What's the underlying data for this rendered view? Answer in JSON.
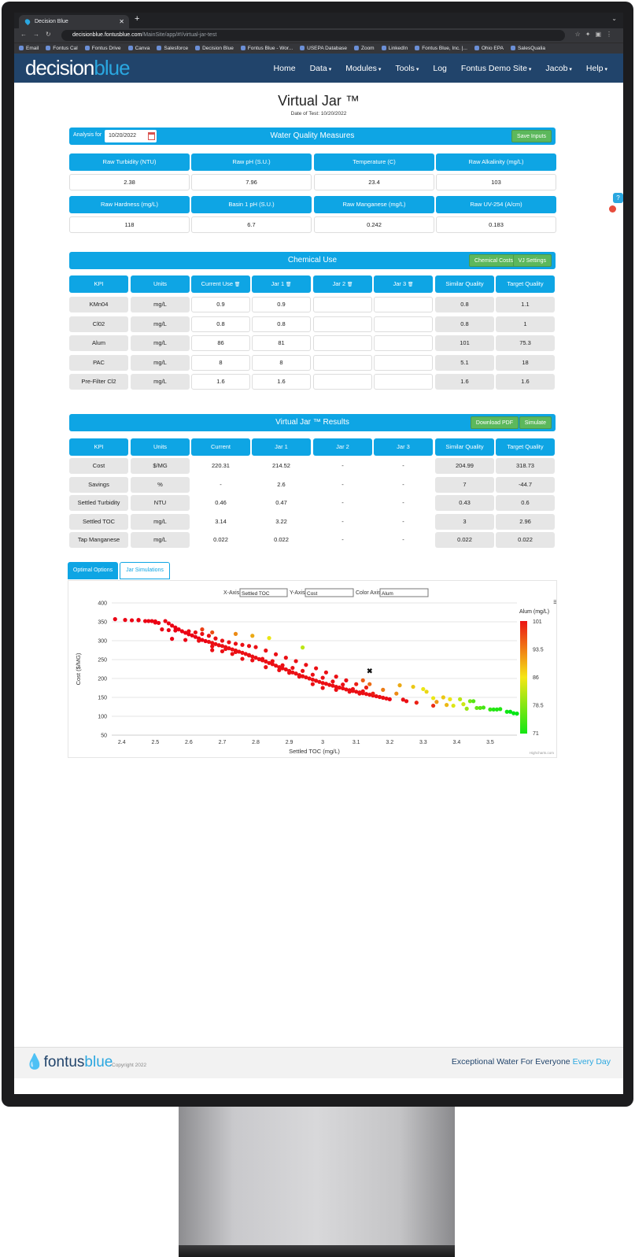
{
  "browser": {
    "tab_title": "Decision Blue",
    "url_host": "decisionblue.fontusblue.com",
    "url_path": "/MainSite/app/#!/virtual-jar-test",
    "bookmarks": [
      "Email",
      "Fontus Cal",
      "Fontus Drive",
      "Canva",
      "Salesforce",
      "Decision Blue",
      "Fontus Blue - Wor...",
      "USEPA Database",
      "Zoom",
      "LinkedIn",
      "Fontus Blue, Inc. |...",
      "Ohio EPA",
      "SalesQualia"
    ]
  },
  "nav": {
    "logo_a": "decision",
    "logo_b": "blue",
    "items": [
      "Home",
      "Data",
      "Modules",
      "Tools",
      "Log",
      "Fontus Demo Site",
      "Jacob",
      "Help"
    ]
  },
  "page": {
    "title": "Virtual Jar ™",
    "subtitle": "Date of Test: 10/20/2022"
  },
  "wq": {
    "analysis_label": "Analysis for",
    "date": "10/20/2022",
    "title": "Water Quality Measures",
    "save_label": "Save Inputs",
    "row1": [
      {
        "label": "Raw Turbidity (NTU)",
        "value": "2.38"
      },
      {
        "label": "Raw pH (S.U.)",
        "value": "7.96"
      },
      {
        "label": "Temperature (C)",
        "value": "23.4"
      },
      {
        "label": "Raw Alkalinity (mg/L)",
        "value": "103"
      }
    ],
    "row2": [
      {
        "label": "Raw Hardness (mg/L)",
        "value": "118"
      },
      {
        "label": "Basin 1 pH (S.U.)",
        "value": "6.7"
      },
      {
        "label": "Raw Manganese (mg/L)",
        "value": "0.242"
      },
      {
        "label": "Raw UV-254 (A/cm)",
        "value": "0.183"
      }
    ]
  },
  "chem": {
    "title": "Chemical Use",
    "costs_label": "Chemical Costs",
    "settings_label": "VJ Settings",
    "headers": [
      "KPI",
      "Units",
      "Current Use",
      "Jar 1",
      "Jar 2",
      "Jar 3",
      "Similar Quality",
      "Target Quality"
    ],
    "rows": [
      [
        "KMn04",
        "mg/L",
        "0.9",
        "0.9",
        "",
        "",
        "0.8",
        "1.1"
      ],
      [
        "Cl02",
        "mg/L",
        "0.8",
        "0.8",
        "",
        "",
        "0.8",
        "1"
      ],
      [
        "Alum",
        "mg/L",
        "86",
        "81",
        "",
        "",
        "101",
        "75.3"
      ],
      [
        "PAC",
        "mg/L",
        "8",
        "8",
        "",
        "",
        "5.1",
        "18"
      ],
      [
        "Pre-Filter Cl2",
        "mg/L",
        "1.6",
        "1.6",
        "",
        "",
        "1.6",
        "1.6"
      ]
    ]
  },
  "results": {
    "title": "Virtual Jar ™ Results",
    "pdf_label": "Download PDF",
    "simulate_label": "Simulate",
    "headers": [
      "KPI",
      "Units",
      "Current",
      "Jar 1",
      "Jar 2",
      "Jar 3",
      "Similar Quality",
      "Target Quality"
    ],
    "rows": [
      [
        "Cost",
        "$/MG",
        "220.31",
        "214.52",
        "-",
        "-",
        "204.99",
        "318.73"
      ],
      [
        "Savings",
        "%",
        "-",
        "2.6",
        "-",
        "-",
        "7",
        "-44.7"
      ],
      [
        "Settled Turbidity",
        "NTU",
        "0.46",
        "0.47",
        "-",
        "-",
        "0.43",
        "0.6"
      ],
      [
        "Settled TOC",
        "mg/L",
        "3.14",
        "3.22",
        "-",
        "-",
        "3",
        "2.96"
      ],
      [
        "Tap Manganese",
        "mg/L",
        "0.022",
        "0.022",
        "-",
        "-",
        "0.022",
        "0.022"
      ]
    ]
  },
  "tabs": {
    "optimal": "Optimal Options",
    "jar": "Jar Simulations"
  },
  "controls": {
    "x_label": "X-Axis",
    "x_value": "Settled TOC",
    "y_label": "Y-Axis",
    "y_value": "Cost",
    "c_label": "Color Axis",
    "c_value": "Alum"
  },
  "chart_data": {
    "type": "scatter",
    "xlabel": "Settled TOC (mg/L)",
    "ylabel": "Cost ($/MG)",
    "xlim": [
      2.37,
      3.58
    ],
    "ylim": [
      50,
      400
    ],
    "xticks": [
      "2.4",
      "2.5",
      "2.6",
      "2.7",
      "2.8",
      "2.9",
      "3",
      "3.1",
      "3.2",
      "3.3",
      "3.4",
      "3.5"
    ],
    "yticks": [
      "400",
      "350",
      "300",
      "250",
      "200",
      "150",
      "100",
      "50"
    ],
    "colorbar": {
      "title": "Alum (mg/L)",
      "ticks": [
        "101",
        "93.5",
        "86",
        "78.5",
        "71"
      ],
      "min": 71,
      "max": 101
    },
    "credits": "Highcharts.com",
    "marker": {
      "x": 3.14,
      "y": 220
    },
    "points": [
      [
        2.38,
        357,
        101
      ],
      [
        2.41,
        355,
        101
      ],
      [
        2.43,
        354,
        101
      ],
      [
        2.45,
        355,
        101
      ],
      [
        2.48,
        352,
        101
      ],
      [
        2.49,
        352,
        101
      ],
      [
        2.5,
        351,
        101
      ],
      [
        2.5,
        348,
        101
      ],
      [
        2.51,
        347,
        101
      ],
      [
        2.53,
        352,
        101
      ],
      [
        2.54,
        346,
        101
      ],
      [
        2.55,
        340,
        101
      ],
      [
        2.56,
        335,
        101
      ],
      [
        2.57,
        330,
        101
      ],
      [
        2.58,
        325,
        101
      ],
      [
        2.59,
        321,
        101
      ],
      [
        2.6,
        317,
        101
      ],
      [
        2.61,
        314,
        101
      ],
      [
        2.62,
        310,
        101
      ],
      [
        2.63,
        306,
        101
      ],
      [
        2.64,
        302,
        101
      ],
      [
        2.65,
        299,
        101
      ],
      [
        2.66,
        297,
        100
      ],
      [
        2.67,
        294,
        100
      ],
      [
        2.68,
        291,
        100
      ],
      [
        2.69,
        288,
        100
      ],
      [
        2.7,
        286,
        100
      ],
      [
        2.71,
        283,
        100
      ],
      [
        2.72,
        280,
        100
      ],
      [
        2.73,
        277,
        100
      ],
      [
        2.74,
        274,
        100
      ],
      [
        2.75,
        271,
        100
      ],
      [
        2.76,
        268,
        100
      ],
      [
        2.77,
        265,
        100
      ],
      [
        2.78,
        261,
        100
      ],
      [
        2.79,
        258,
        100
      ],
      [
        2.8,
        255,
        100
      ],
      [
        2.81,
        251,
        100
      ],
      [
        2.82,
        248,
        100
      ],
      [
        2.83,
        245,
        100
      ],
      [
        2.84,
        241,
        100
      ],
      [
        2.85,
        238,
        100
      ],
      [
        2.86,
        234,
        100
      ],
      [
        2.87,
        230,
        100
      ],
      [
        2.88,
        227,
        100
      ],
      [
        2.89,
        224,
        100
      ],
      [
        2.9,
        220,
        100
      ],
      [
        2.91,
        216,
        100
      ],
      [
        2.92,
        213,
        100
      ],
      [
        2.93,
        209,
        100
      ],
      [
        2.94,
        206,
        100
      ],
      [
        2.95,
        203,
        100
      ],
      [
        2.96,
        200,
        100
      ],
      [
        2.97,
        197,
        100
      ],
      [
        2.98,
        194,
        100
      ],
      [
        2.99,
        191,
        100
      ],
      [
        3.0,
        188,
        100
      ],
      [
        3.01,
        186,
        100
      ],
      [
        3.02,
        183,
        100
      ],
      [
        3.03,
        181,
        100
      ],
      [
        3.04,
        178,
        100
      ],
      [
        3.05,
        176,
        100
      ],
      [
        3.06,
        174,
        100
      ],
      [
        3.07,
        171,
        100
      ],
      [
        3.08,
        169,
        100
      ],
      [
        3.09,
        167,
        100
      ],
      [
        3.1,
        165,
        100
      ],
      [
        3.11,
        163,
        100
      ],
      [
        3.12,
        161,
        100
      ],
      [
        3.13,
        159,
        100
      ],
      [
        3.14,
        157,
        100
      ],
      [
        3.15,
        155,
        100
      ],
      [
        3.16,
        153,
        100
      ],
      [
        3.17,
        151,
        100
      ],
      [
        3.18,
        149,
        100
      ],
      [
        3.19,
        147,
        100
      ],
      [
        3.2,
        145,
        101
      ],
      [
        2.52,
        330,
        101
      ],
      [
        2.54,
        328,
        101
      ],
      [
        2.56,
        327,
        101
      ],
      [
        2.6,
        325,
        100
      ],
      [
        2.62,
        322,
        100
      ],
      [
        2.64,
        318,
        100
      ],
      [
        2.66,
        313,
        100
      ],
      [
        2.68,
        306,
        100
      ],
      [
        2.7,
        300,
        100
      ],
      [
        2.72,
        296,
        100
      ],
      [
        2.74,
        292,
        100
      ],
      [
        2.76,
        289,
        100
      ],
      [
        2.78,
        286,
        100
      ],
      [
        2.8,
        283,
        100
      ],
      [
        2.83,
        274,
        100
      ],
      [
        2.86,
        264,
        100
      ],
      [
        2.89,
        255,
        100
      ],
      [
        2.92,
        246,
        100
      ],
      [
        2.95,
        236,
        100
      ],
      [
        2.98,
        227,
        100
      ],
      [
        3.01,
        216,
        100
      ],
      [
        3.04,
        205,
        100
      ],
      [
        3.07,
        195,
        100
      ],
      [
        3.1,
        185,
        99
      ],
      [
        3.13,
        176,
        99
      ],
      [
        2.55,
        305,
        101
      ],
      [
        2.59,
        302,
        101
      ],
      [
        2.63,
        300,
        100
      ],
      [
        2.67,
        285,
        100
      ],
      [
        2.71,
        278,
        100
      ],
      [
        2.74,
        270,
        100
      ],
      [
        2.78,
        262,
        100
      ],
      [
        2.82,
        252,
        100
      ],
      [
        2.85,
        246,
        100
      ],
      [
        2.88,
        235,
        100
      ],
      [
        2.91,
        228,
        100
      ],
      [
        2.94,
        220,
        100
      ],
      [
        2.97,
        210,
        100
      ],
      [
        3.0,
        202,
        100
      ],
      [
        3.03,
        192,
        100
      ],
      [
        3.06,
        184,
        100
      ],
      [
        3.09,
        172,
        100
      ],
      [
        3.12,
        166,
        100
      ],
      [
        2.67,
        275,
        100
      ],
      [
        2.7,
        272,
        100
      ],
      [
        2.73,
        265,
        100
      ],
      [
        2.76,
        252,
        100
      ],
      [
        2.79,
        248,
        100
      ],
      [
        2.83,
        230,
        100
      ],
      [
        2.87,
        222,
        100
      ],
      [
        2.9,
        215,
        100
      ],
      [
        2.93,
        205,
        100
      ],
      [
        2.97,
        185,
        100
      ],
      [
        3.0,
        175,
        100
      ],
      [
        3.04,
        170,
        100
      ],
      [
        3.08,
        165,
        100
      ],
      [
        3.11,
        160,
        100
      ],
      [
        3.15,
        160,
        99
      ],
      [
        2.64,
        330,
        97
      ],
      [
        2.67,
        322,
        96
      ],
      [
        2.74,
        318,
        92
      ],
      [
        2.79,
        313,
        90
      ],
      [
        2.84,
        307,
        86
      ],
      [
        2.94,
        282,
        82
      ],
      [
        3.12,
        195,
        95
      ],
      [
        3.14,
        185,
        94
      ],
      [
        3.18,
        170,
        93
      ],
      [
        3.22,
        160,
        92
      ],
      [
        3.23,
        182,
        90
      ],
      [
        3.27,
        178,
        88
      ],
      [
        3.3,
        172,
        86
      ],
      [
        3.31,
        165,
        87
      ],
      [
        3.33,
        148,
        86
      ],
      [
        3.34,
        138,
        91
      ],
      [
        3.36,
        150,
        88
      ],
      [
        3.37,
        130,
        89
      ],
      [
        3.38,
        145,
        85
      ],
      [
        3.39,
        128,
        84
      ],
      [
        3.41,
        145,
        82
      ],
      [
        3.42,
        132,
        83
      ],
      [
        3.43,
        120,
        80
      ],
      [
        3.44,
        140,
        78
      ],
      [
        3.45,
        140,
        76
      ],
      [
        3.46,
        122,
        77
      ],
      [
        3.47,
        122,
        76
      ],
      [
        3.48,
        123,
        75
      ],
      [
        3.5,
        118,
        74
      ],
      [
        3.51,
        118,
        73
      ],
      [
        3.52,
        118,
        73
      ],
      [
        3.53,
        119,
        73
      ],
      [
        3.55,
        112,
        72
      ],
      [
        3.56,
        112,
        71
      ],
      [
        3.57,
        108,
        71
      ],
      [
        3.58,
        107,
        71
      ],
      [
        3.25,
        140,
        100
      ],
      [
        3.24,
        144,
        100
      ],
      [
        3.28,
        136,
        99
      ],
      [
        3.33,
        128,
        98
      ],
      [
        2.45,
        354,
        101
      ],
      [
        2.47,
        352,
        101
      ]
    ]
  }
}
